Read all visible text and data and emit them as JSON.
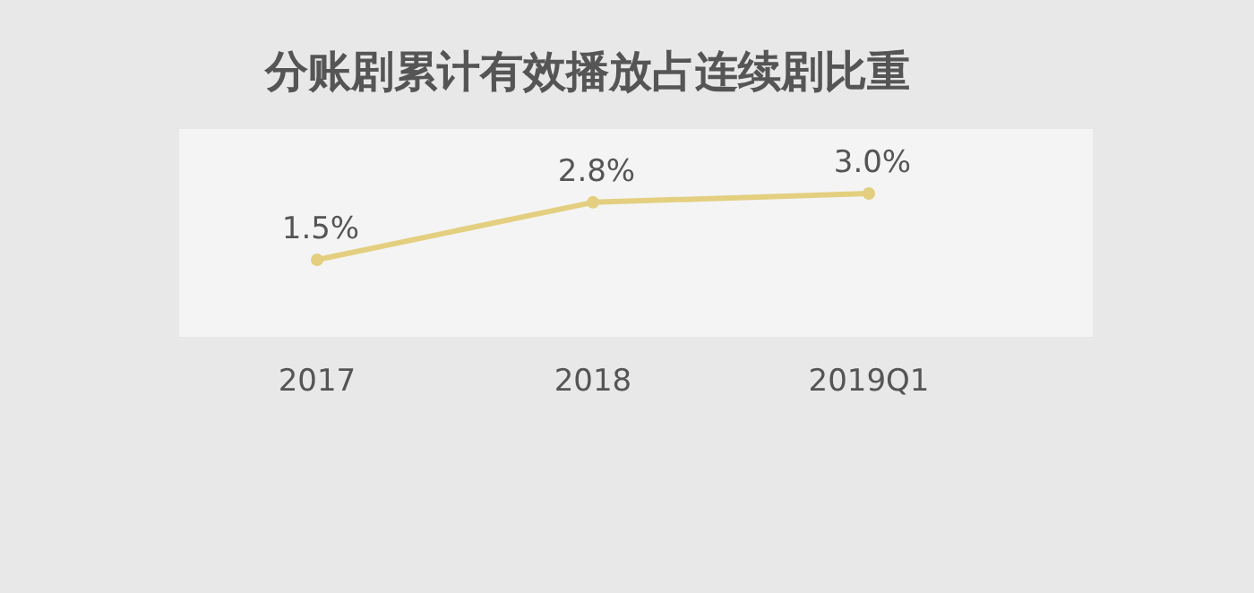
{
  "chart_data": {
    "type": "line",
    "title": "分账剧累计有效播放占连续剧比重",
    "categories": [
      "2017",
      "2018",
      "2019Q1"
    ],
    "series": [
      {
        "color": "#e3cf7f",
        "values": [
          1.5,
          2.8,
          3.0
        ],
        "value_labels": [
          "1.5%",
          "2.8%",
          "3.0%"
        ]
      }
    ],
    "tick_labels": "x",
    "marker": "circle",
    "line_style": "solid"
  }
}
